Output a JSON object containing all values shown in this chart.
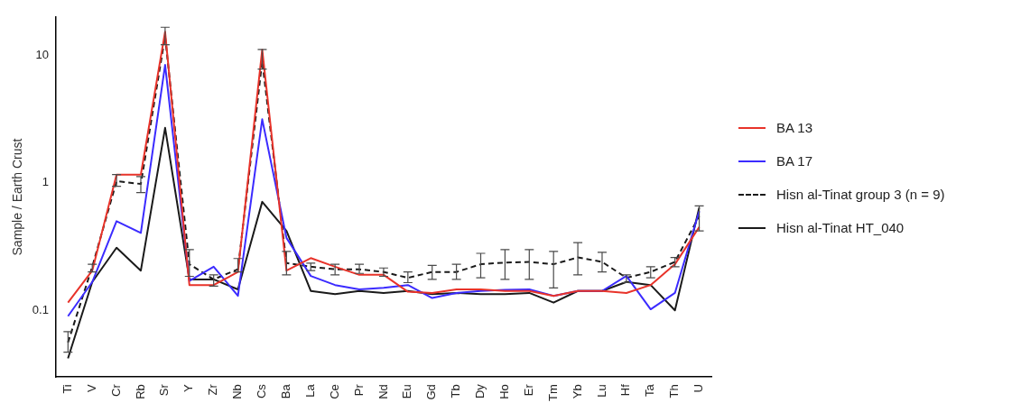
{
  "chart_data": {
    "type": "line",
    "ylabel": "Sample / Earth Crust",
    "log": "y",
    "ylim": [
      0.03,
      20
    ],
    "yticks": [
      0.1,
      1,
      10
    ],
    "grid": false,
    "legend": "right",
    "marker": "none",
    "categories": [
      "Ti",
      "V",
      "Cr",
      "Rb",
      "Sr",
      "Y",
      "Zr",
      "Nb",
      "Cs",
      "Ba",
      "La",
      "Ce",
      "Pr",
      "Nd",
      "Eu",
      "Gd",
      "Tb",
      "Dy",
      "Ho",
      "Er",
      "Tm",
      "Yb",
      "Lu",
      "Hf",
      "Ta",
      "Th",
      "U"
    ],
    "series": [
      {
        "name": "BA 13",
        "color": "#e8332a",
        "line_style": "solid",
        "values": [
          0.115,
          0.205,
          1.16,
          1.16,
          15.3,
          0.158,
          0.158,
          0.2,
          11.1,
          0.205,
          0.257,
          0.22,
          0.19,
          0.19,
          0.14,
          0.137,
          0.146,
          0.146,
          0.142,
          0.142,
          0.13,
          0.142,
          0.142,
          0.137,
          0.158,
          0.23,
          0.45
        ]
      },
      {
        "name": "BA 17",
        "color": "#3b2bff",
        "line_style": "solid",
        "values": [
          0.09,
          0.167,
          0.5,
          0.405,
          8.4,
          0.17,
          0.22,
          0.13,
          3.15,
          0.37,
          0.186,
          0.158,
          0.146,
          0.15,
          0.158,
          0.125,
          0.137,
          0.142,
          0.145,
          0.146,
          0.13,
          0.142,
          0.142,
          0.186,
          0.102,
          0.137,
          0.6
        ]
      },
      {
        "name": "Hisn al-Tinat group 3 (n = 9)",
        "color": "#1a1a1a",
        "line_style": "dashed",
        "values": [
          0.056,
          0.22,
          1.03,
          0.98,
          14.1,
          0.23,
          0.175,
          0.21,
          9,
          0.235,
          0.22,
          0.21,
          0.21,
          0.2,
          0.18,
          0.2,
          0.2,
          0.23,
          0.237,
          0.24,
          0.23,
          0.26,
          0.24,
          0.18,
          0.2,
          0.24,
          0.55
        ],
        "errors": [
          [
            0.047,
            0.068
          ],
          [
            0.2,
            0.23
          ],
          [
            0.94,
            1.16
          ],
          [
            0.84,
            1.12
          ],
          [
            12.1,
            16.6
          ],
          [
            0.185,
            0.3
          ],
          [
            0.155,
            0.19
          ],
          [
            0.2,
            0.255
          ],
          [
            7.8,
            11.1
          ],
          [
            0.19,
            0.29
          ],
          [
            0.205,
            0.235
          ],
          [
            0.19,
            0.23
          ],
          [
            0.195,
            0.23
          ],
          [
            0.185,
            0.215
          ],
          [
            0.165,
            0.2
          ],
          [
            0.175,
            0.225
          ],
          [
            0.175,
            0.23
          ],
          [
            0.18,
            0.28
          ],
          [
            0.175,
            0.3
          ],
          [
            0.175,
            0.3
          ],
          [
            0.15,
            0.29
          ],
          [
            0.19,
            0.34
          ],
          [
            0.2,
            0.285
          ],
          [
            0.165,
            0.19
          ],
          [
            0.18,
            0.22
          ],
          [
            0.22,
            0.26
          ],
          [
            0.42,
            0.66
          ]
        ]
      },
      {
        "name": "Hisn al-Tinat HT_040",
        "color": "#1a1a1a",
        "line_style": "solid",
        "values": [
          0.042,
          0.167,
          0.31,
          0.205,
          2.7,
          0.175,
          0.175,
          0.146,
          0.71,
          0.42,
          0.142,
          0.134,
          0.142,
          0.137,
          0.142,
          0.134,
          0.137,
          0.134,
          0.134,
          0.137,
          0.115,
          0.142,
          0.142,
          0.167,
          0.158,
          0.1,
          0.64
        ]
      }
    ]
  }
}
